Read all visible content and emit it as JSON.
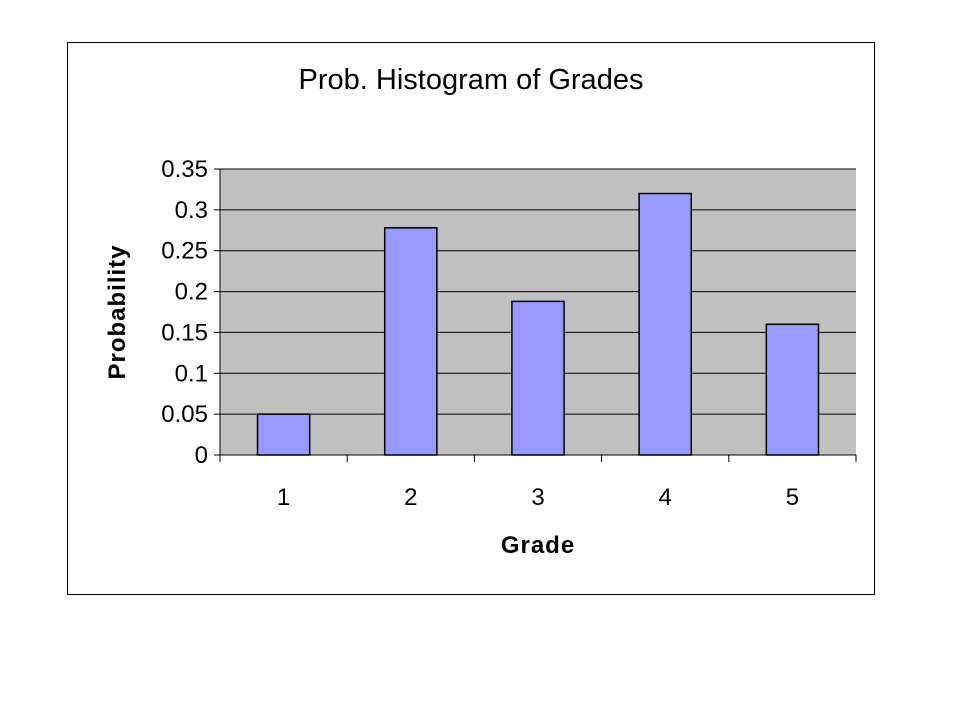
{
  "chart_data": {
    "type": "bar",
    "title": "Prob. Histogram of Grades",
    "xlabel": "Grade",
    "ylabel": "Probability",
    "categories": [
      "1",
      "2",
      "3",
      "4",
      "5"
    ],
    "values": [
      0.05,
      0.278,
      0.188,
      0.32,
      0.16
    ],
    "ylim": [
      0,
      0.35
    ],
    "yticks": [
      "0",
      "0.05",
      "0.1",
      "0.15",
      "0.2",
      "0.25",
      "0.3",
      "0.35"
    ],
    "grid": true,
    "legend": "none",
    "colors": {
      "bar_fill": "#9999ff",
      "bar_stroke": "#000000",
      "plot_background": "#c0c0c0",
      "gridline": "#000000"
    }
  }
}
